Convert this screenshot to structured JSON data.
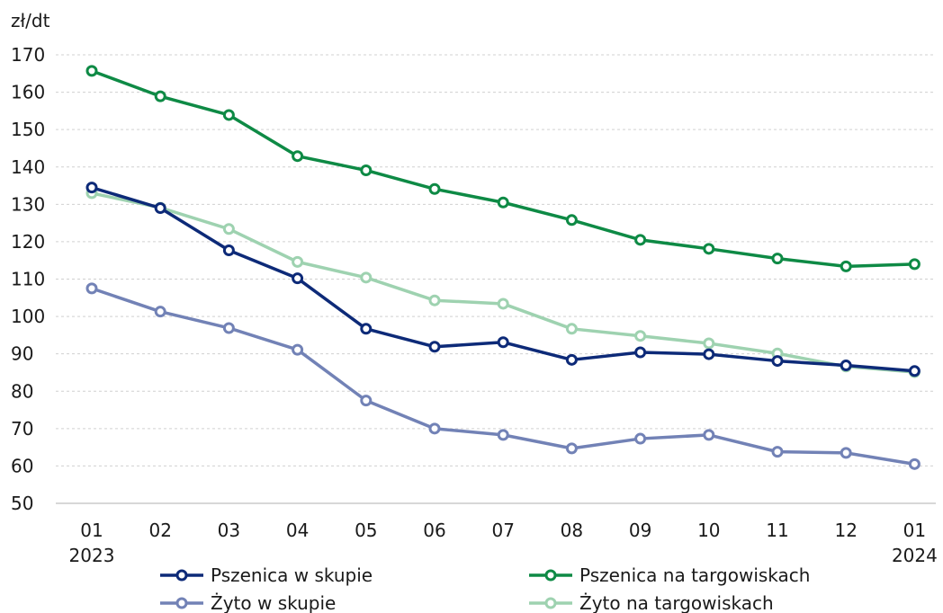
{
  "chart_data": {
    "type": "line",
    "title": "",
    "unit_label": "zł/dt",
    "xlabel": "",
    "ylabel": "",
    "ylim": [
      50,
      170
    ],
    "yticks": [
      50,
      60,
      70,
      80,
      90,
      100,
      110,
      120,
      130,
      140,
      150,
      160,
      170
    ],
    "categories": [
      "01",
      "02",
      "03",
      "04",
      "05",
      "06",
      "07",
      "08",
      "09",
      "10",
      "11",
      "12",
      "01"
    ],
    "year_labels": [
      {
        "index": 0,
        "label": "2023"
      },
      {
        "index": 12,
        "label": "2024"
      }
    ],
    "grid": "horizontal",
    "legend_position": "bottom",
    "series": [
      {
        "name": "Pszenica w skupie",
        "color": "#0d2a78",
        "values": [
          134.5,
          129.0,
          117.7,
          110.2,
          96.7,
          91.9,
          93.1,
          88.4,
          90.4,
          89.9,
          88.1,
          86.9,
          85.4
        ]
      },
      {
        "name": "Pszenica na targowiskach",
        "color": "#0e8a45",
        "values": [
          165.7,
          158.9,
          153.9,
          142.9,
          139.1,
          134.1,
          130.5,
          125.8,
          120.5,
          118.1,
          115.5,
          113.4,
          114.0
        ]
      },
      {
        "name": "Żyto w skupie",
        "color": "#7282b6",
        "values": [
          107.5,
          101.3,
          96.9,
          91.1,
          77.5,
          70.0,
          68.3,
          64.7,
          67.3,
          68.3,
          63.8,
          63.5,
          60.5
        ]
      },
      {
        "name": "Żyto na targowiskach",
        "color": "#9ed2b0",
        "values": [
          133.0,
          129.1,
          123.4,
          114.6,
          110.4,
          104.3,
          103.4,
          96.7,
          94.8,
          92.8,
          90.1,
          86.6,
          85.1
        ]
      }
    ]
  }
}
